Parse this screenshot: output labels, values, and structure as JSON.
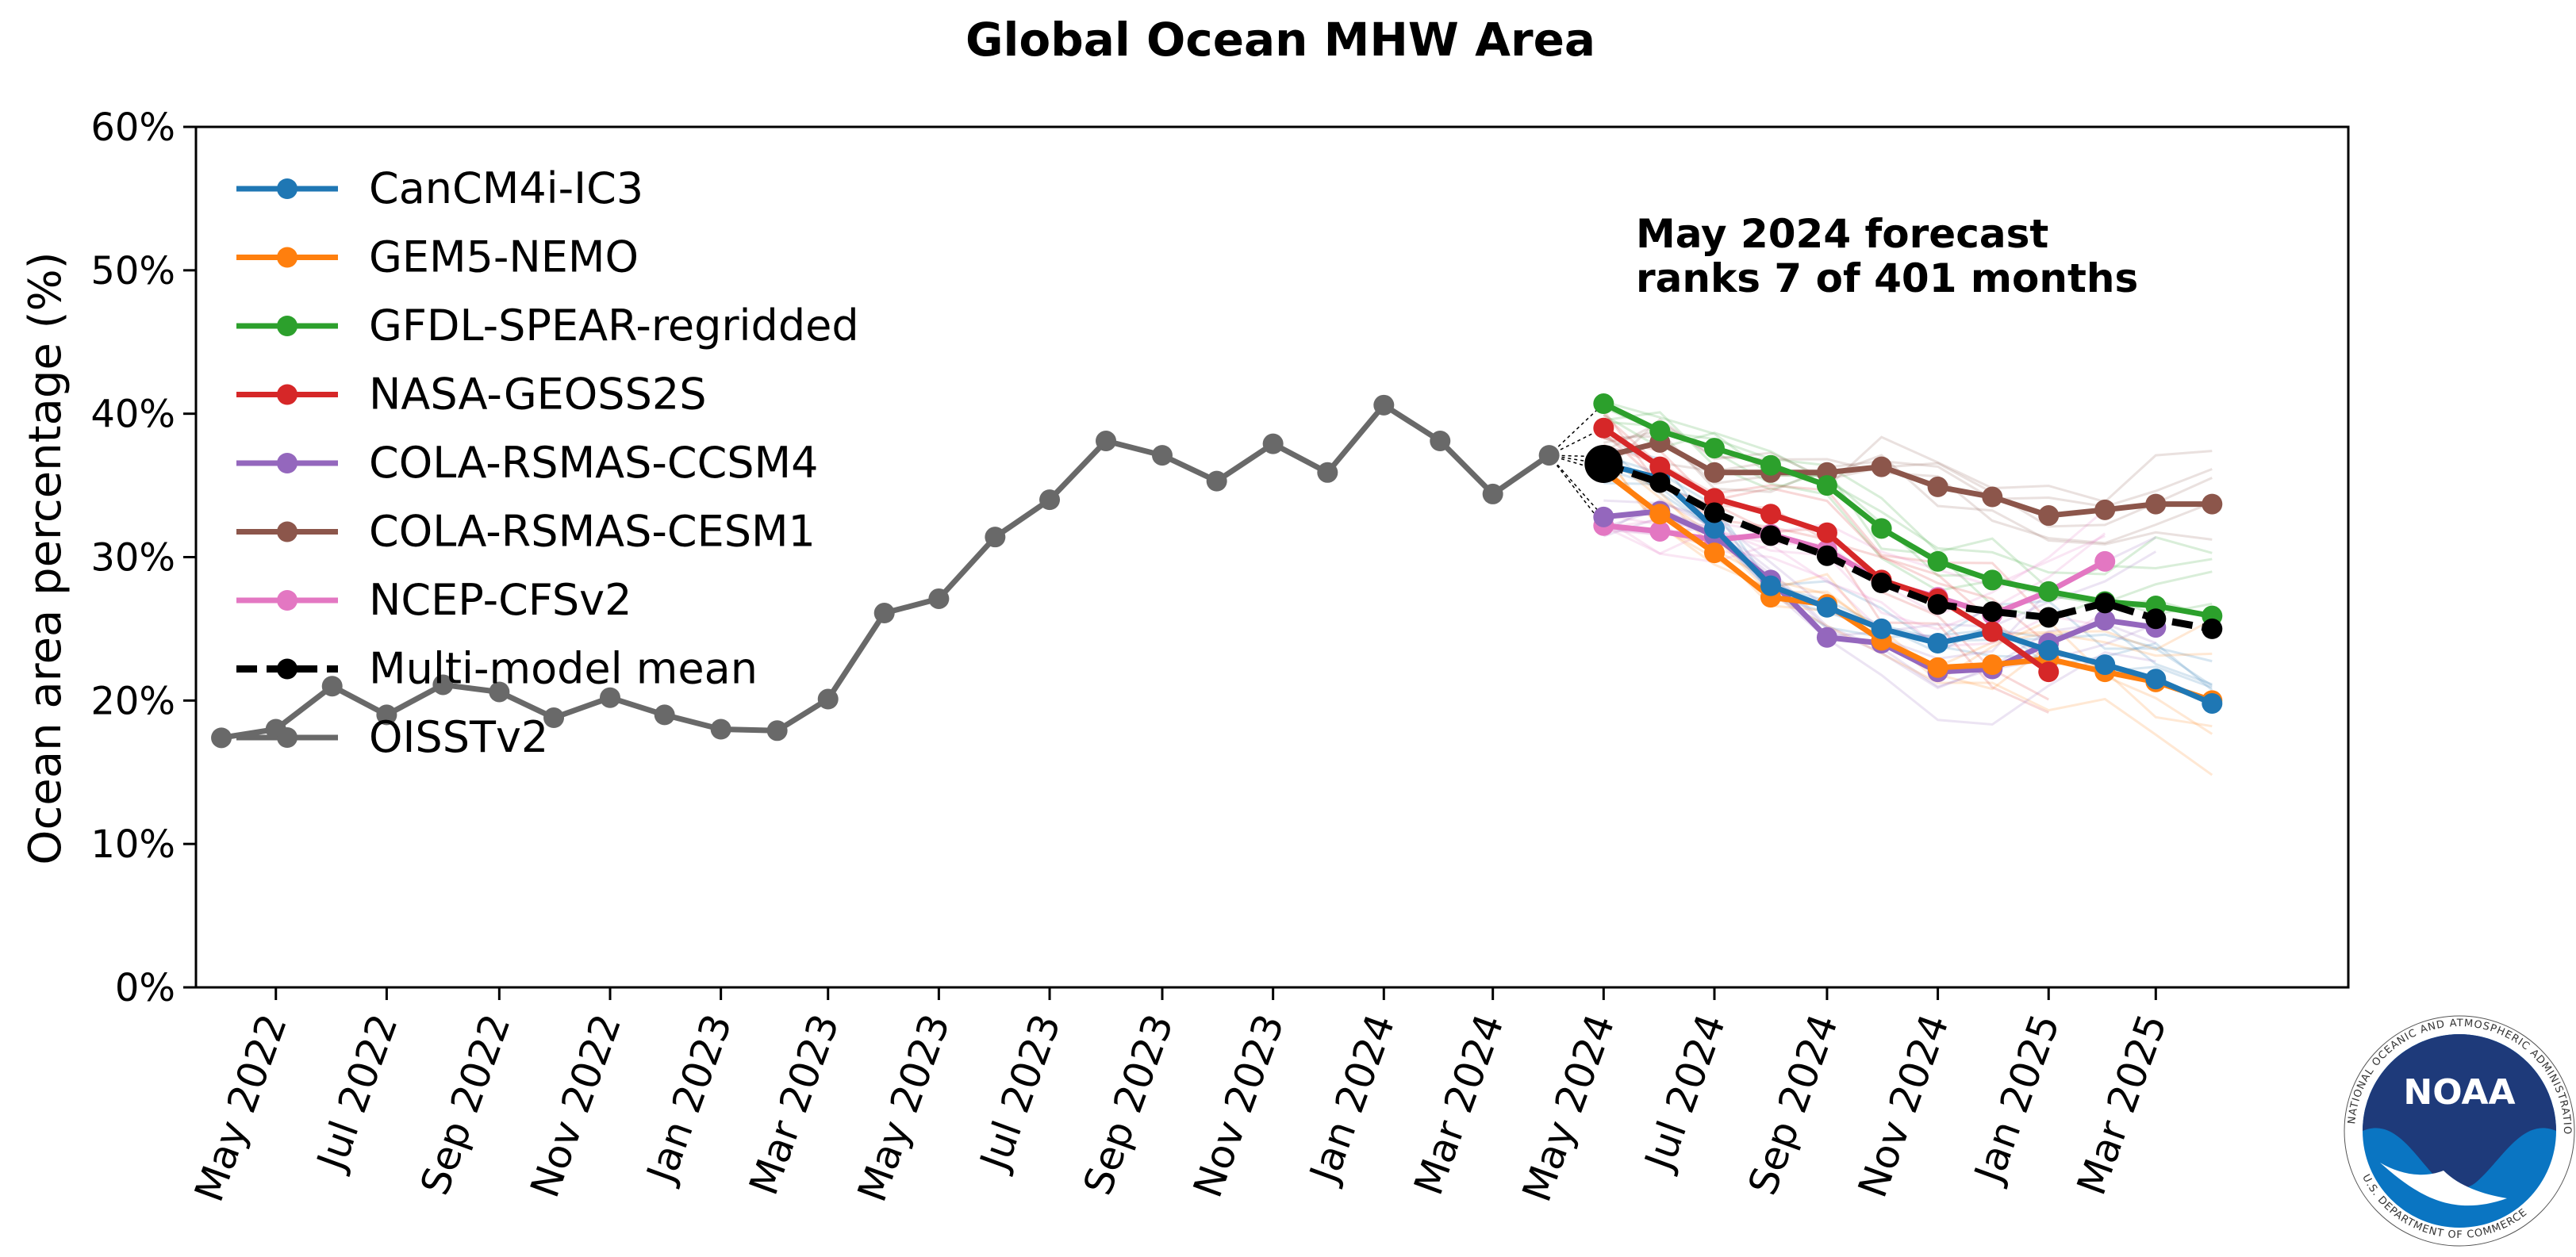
{
  "chart_data": {
    "type": "line",
    "title": "Global Ocean MHW Area",
    "ylabel": "Ocean area percentage (%)",
    "xlabel": "",
    "ylim": [
      0,
      60
    ],
    "xlim": [
      "2022-03-18",
      "2025-06-15"
    ],
    "yticks": [
      {
        "value": 0,
        "label": "0%"
      },
      {
        "value": 10,
        "label": "10%"
      },
      {
        "value": 20,
        "label": "20%"
      },
      {
        "value": 30,
        "label": "30%"
      },
      {
        "value": 40,
        "label": "40%"
      },
      {
        "value": 50,
        "label": "50%"
      },
      {
        "value": 60,
        "label": "60%"
      }
    ],
    "xticks": [
      {
        "date": "2022-05-01",
        "label": "May 2022"
      },
      {
        "date": "2022-07-01",
        "label": "Jul 2022"
      },
      {
        "date": "2022-09-01",
        "label": "Sep 2022"
      },
      {
        "date": "2022-11-01",
        "label": "Nov 2022"
      },
      {
        "date": "2023-01-01",
        "label": "Jan 2023"
      },
      {
        "date": "2023-03-01",
        "label": "Mar 2023"
      },
      {
        "date": "2023-05-01",
        "label": "May 2023"
      },
      {
        "date": "2023-07-01",
        "label": "Jul 2023"
      },
      {
        "date": "2023-09-01",
        "label": "Sep 2023"
      },
      {
        "date": "2023-11-01",
        "label": "Nov 2023"
      },
      {
        "date": "2024-01-01",
        "label": "Jan 2024"
      },
      {
        "date": "2024-03-01",
        "label": "Mar 2024"
      },
      {
        "date": "2024-05-01",
        "label": "May 2024"
      },
      {
        "date": "2024-07-01",
        "label": "Jul 2024"
      },
      {
        "date": "2024-09-01",
        "label": "Sep 2024"
      },
      {
        "date": "2024-11-01",
        "label": "Nov 2024"
      },
      {
        "date": "2025-01-01",
        "label": "Jan 2025"
      },
      {
        "date": "2025-03-01",
        "label": "Mar 2025"
      }
    ],
    "grid": false,
    "legend_position": "top-left",
    "annotation": [
      "May 2024 forecast",
      "ranks 7 of 401 months"
    ],
    "series": [
      {
        "name": "CanCM4i-IC3",
        "color": "#1f77b4",
        "style": "solid",
        "dates": [
          "2024-05-01",
          "2024-06-01",
          "2024-07-01",
          "2024-08-01",
          "2024-09-01",
          "2024-10-01",
          "2024-11-01",
          "2024-12-01",
          "2025-01-01",
          "2025-02-01",
          "2025-03-01",
          "2025-04-01"
        ],
        "values": [
          36.5,
          35.5,
          32.0,
          28.0,
          26.5,
          25.0,
          24.0,
          24.8,
          23.5,
          22.5,
          21.5,
          19.8
        ]
      },
      {
        "name": "GEM5-NEMO",
        "color": "#ff7f0e",
        "style": "solid",
        "dates": [
          "2024-05-01",
          "2024-06-01",
          "2024-07-01",
          "2024-08-01",
          "2024-09-01",
          "2024-10-01",
          "2024-11-01",
          "2024-12-01",
          "2025-01-01",
          "2025-02-01",
          "2025-03-01",
          "2025-04-01"
        ],
        "values": [
          36.0,
          33.0,
          30.3,
          27.2,
          26.7,
          24.2,
          22.3,
          22.5,
          22.9,
          22.0,
          21.3,
          20.0
        ]
      },
      {
        "name": "GFDL-SPEAR-regridded",
        "color": "#2ca02c",
        "style": "solid",
        "dates": [
          "2024-05-01",
          "2024-06-01",
          "2024-07-01",
          "2024-08-01",
          "2024-09-01",
          "2024-10-01",
          "2024-11-01",
          "2024-12-01",
          "2025-01-01",
          "2025-02-01",
          "2025-03-01",
          "2025-04-01"
        ],
        "values": [
          40.7,
          38.8,
          37.6,
          36.4,
          35.0,
          32.0,
          29.7,
          28.4,
          27.6,
          26.9,
          26.6,
          25.9
        ]
      },
      {
        "name": "NASA-GEOSS2S",
        "color": "#d62728",
        "style": "solid",
        "dates": [
          "2024-05-01",
          "2024-06-01",
          "2024-07-01",
          "2024-08-01",
          "2024-09-01",
          "2024-10-01",
          "2024-11-01",
          "2024-12-01",
          "2025-01-01"
        ],
        "values": [
          39.0,
          36.3,
          34.1,
          33.0,
          31.7,
          28.4,
          27.1,
          24.8,
          22.0
        ]
      },
      {
        "name": "COLA-RSMAS-CCSM4",
        "color": "#9467bd",
        "style": "solid",
        "dates": [
          "2024-05-01",
          "2024-06-01",
          "2024-07-01",
          "2024-08-01",
          "2024-09-01",
          "2024-10-01",
          "2024-11-01",
          "2024-12-01",
          "2025-01-01",
          "2025-02-01",
          "2025-03-01"
        ],
        "values": [
          32.8,
          33.2,
          31.5,
          28.4,
          24.4,
          24.0,
          22.0,
          22.2,
          24.0,
          25.6,
          25.1
        ]
      },
      {
        "name": "COLA-RSMAS-CESM1",
        "color": "#8c564b",
        "style": "solid",
        "dates": [
          "2024-05-01",
          "2024-06-01",
          "2024-07-01",
          "2024-08-01",
          "2024-09-01",
          "2024-10-01",
          "2024-11-01",
          "2024-12-01",
          "2025-01-01",
          "2025-02-01",
          "2025-03-01",
          "2025-04-01"
        ],
        "values": [
          37.0,
          38.0,
          35.9,
          35.9,
          35.9,
          36.3,
          34.9,
          34.2,
          32.9,
          33.3,
          33.7,
          33.7
        ]
      },
      {
        "name": "NCEP-CFSv2",
        "color": "#e377c2",
        "style": "solid",
        "dates": [
          "2024-05-01",
          "2024-06-01",
          "2024-07-01",
          "2024-08-01",
          "2024-09-01",
          "2024-10-01",
          "2024-11-01",
          "2024-12-01",
          "2025-01-01",
          "2025-02-01"
        ],
        "values": [
          32.2,
          31.8,
          31.2,
          31.6,
          30.5,
          28.3,
          27.2,
          26.0,
          27.6,
          29.7
        ]
      },
      {
        "name": "Multi-model mean",
        "color": "#000000",
        "style": "dashed",
        "dates": [
          "2024-05-01",
          "2024-06-01",
          "2024-07-01",
          "2024-08-01",
          "2024-09-01",
          "2024-10-01",
          "2024-11-01",
          "2024-12-01",
          "2025-01-01",
          "2025-02-01",
          "2025-03-01",
          "2025-04-01"
        ],
        "values": [
          36.5,
          35.2,
          33.1,
          31.5,
          30.1,
          28.2,
          26.7,
          26.2,
          25.8,
          26.8,
          25.7,
          25.0
        ]
      },
      {
        "name": "OISSTv2",
        "color": "#696969",
        "style": "solid",
        "dates": [
          "2022-04-01",
          "2022-05-01",
          "2022-06-01",
          "2022-07-01",
          "2022-08-01",
          "2022-09-01",
          "2022-10-01",
          "2022-11-01",
          "2022-12-01",
          "2023-01-01",
          "2023-02-01",
          "2023-03-01",
          "2023-04-01",
          "2023-05-01",
          "2023-06-01",
          "2023-07-01",
          "2023-08-01",
          "2023-09-01",
          "2023-10-01",
          "2023-11-01",
          "2023-12-01",
          "2024-01-01",
          "2024-02-01",
          "2024-03-01",
          "2024-04-01"
        ],
        "values": [
          17.4,
          18.0,
          21.0,
          19.0,
          21.1,
          20.6,
          18.8,
          20.2,
          19.0,
          18.0,
          17.9,
          20.1,
          26.1,
          27.1,
          31.4,
          34.0,
          38.1,
          37.1,
          35.3,
          37.9,
          35.9,
          40.6,
          38.1,
          34.4,
          37.1
        ]
      }
    ]
  }
}
